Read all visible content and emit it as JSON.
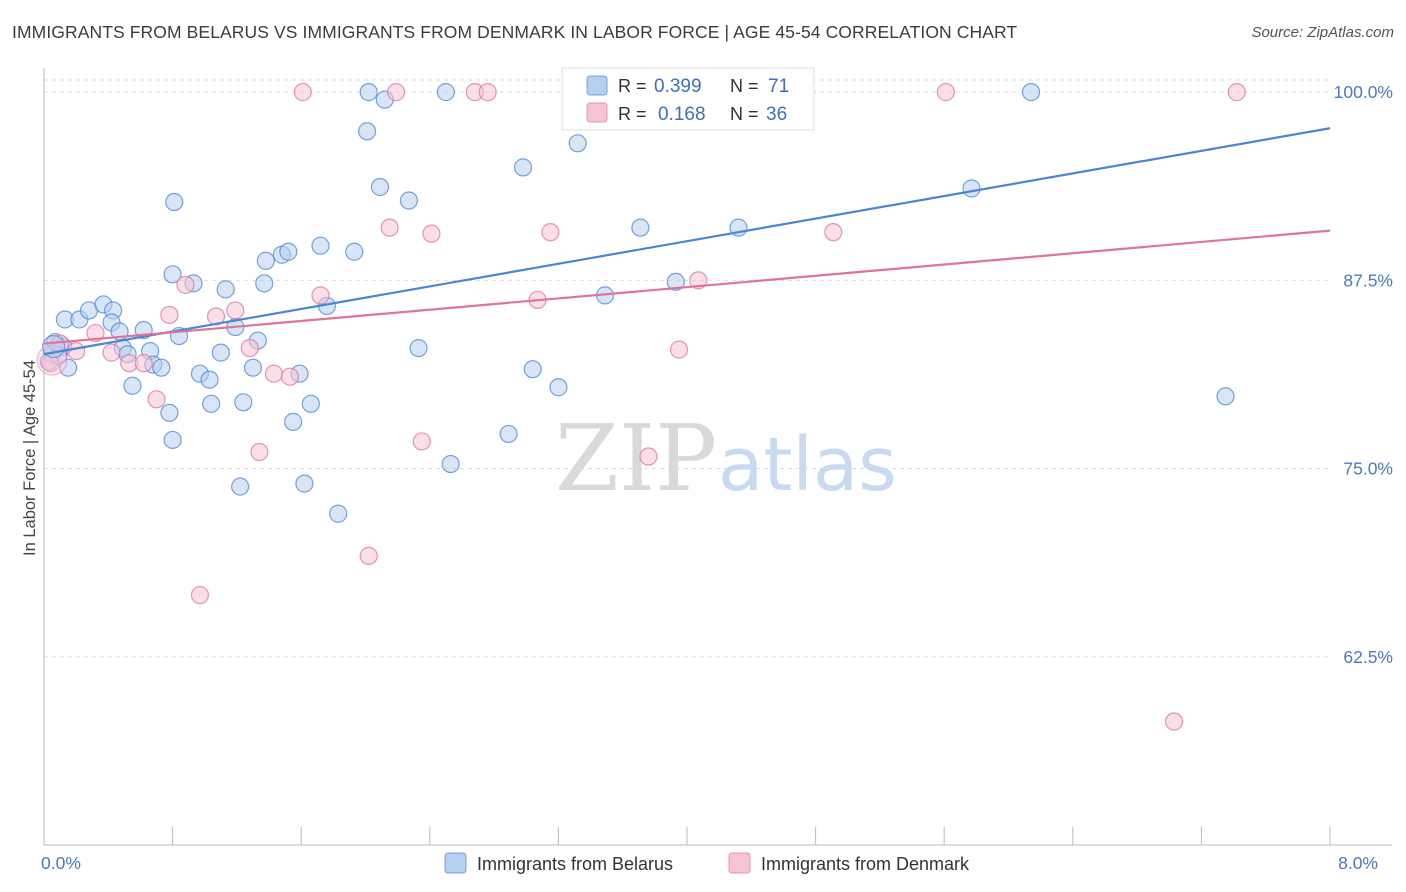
{
  "title": "IMMIGRANTS FROM BELARUS VS IMMIGRANTS FROM DENMARK IN LABOR FORCE | AGE 45-54 CORRELATION CHART",
  "source": "Source: ZipAtlas.com",
  "watermark": {
    "zip": "ZIP",
    "atlas": "atlas"
  },
  "legend_top": {
    "r_label": "R =",
    "n_label": "N =",
    "rows": [
      {
        "r": "0.399",
        "n": "71",
        "color": "#a9c6ec"
      },
      {
        "r": "0.168",
        "n": "36",
        "color": "#f4b7c9"
      }
    ]
  },
  "chart_data": {
    "type": "scatter",
    "ylabel": "In Labor Force | Age 45-54",
    "xlim": [
      0,
      8
    ],
    "ylim": [
      50,
      102
    ],
    "x_tick_labels": [
      {
        "x": 0,
        "label": "0.0%"
      },
      {
        "x": 8,
        "label": "8.0%"
      }
    ],
    "y_ticks": [
      {
        "y": 62.5,
        "label": "62.5%"
      },
      {
        "y": 75.0,
        "label": "75.0%"
      },
      {
        "y": 87.5,
        "label": "87.5%"
      },
      {
        "y": 100.0,
        "label": "100.0%"
      }
    ],
    "grid": true,
    "series": [
      {
        "name": "Immigrants from Belarus",
        "color": "#4a86d4",
        "fill": "#b8d0f0",
        "trend": {
          "x0": 0,
          "y0": 82.6,
          "x1": 8,
          "y1": 97.6
        },
        "points": [
          [
            0.05,
            82.6
          ],
          [
            0.07,
            83.4
          ],
          [
            0.12,
            83.1
          ],
          [
            0.15,
            81.7
          ],
          [
            0.13,
            84.9
          ],
          [
            0.22,
            84.9
          ],
          [
            0.28,
            85.5
          ],
          [
            0.37,
            85.9
          ],
          [
            0.43,
            85.5
          ],
          [
            0.42,
            84.7
          ],
          [
            0.47,
            84.1
          ],
          [
            0.49,
            83.0
          ],
          [
            0.52,
            82.6
          ],
          [
            0.55,
            80.5
          ],
          [
            0.62,
            84.2
          ],
          [
            0.66,
            82.8
          ],
          [
            0.68,
            81.9
          ],
          [
            0.73,
            81.7
          ],
          [
            0.78,
            78.7
          ],
          [
            0.8,
            76.9
          ],
          [
            0.84,
            83.8
          ],
          [
            0.81,
            92.7
          ],
          [
            0.8,
            87.9
          ],
          [
            0.93,
            87.3
          ],
          [
            0.97,
            81.3
          ],
          [
            1.03,
            80.9
          ],
          [
            1.04,
            79.3
          ],
          [
            1.1,
            82.7
          ],
          [
            1.13,
            86.9
          ],
          [
            1.19,
            84.4
          ],
          [
            1.22,
            73.8
          ],
          [
            1.24,
            79.4
          ],
          [
            1.3,
            81.7
          ],
          [
            1.33,
            83.5
          ],
          [
            1.37,
            87.3
          ],
          [
            1.38,
            88.8
          ],
          [
            1.48,
            89.2
          ],
          [
            1.52,
            89.4
          ],
          [
            1.55,
            78.1
          ],
          [
            1.59,
            81.3
          ],
          [
            1.62,
            74.0
          ],
          [
            1.66,
            79.3
          ],
          [
            1.72,
            89.8
          ],
          [
            1.76,
            85.8
          ],
          [
            1.83,
            72.0
          ],
          [
            1.93,
            89.4
          ],
          [
            2.01,
            97.4
          ],
          [
            2.02,
            100.0
          ],
          [
            2.09,
            93.7
          ],
          [
            2.12,
            99.5
          ],
          [
            2.27,
            92.8
          ],
          [
            2.33,
            83.0
          ],
          [
            2.5,
            100.0
          ],
          [
            2.53,
            75.3
          ],
          [
            2.89,
            77.3
          ],
          [
            2.98,
            95.0
          ],
          [
            3.04,
            81.6
          ],
          [
            3.2,
            80.4
          ],
          [
            3.32,
            96.6
          ],
          [
            3.35,
            100.0
          ],
          [
            3.49,
            86.5
          ],
          [
            3.72,
            100.0
          ],
          [
            3.71,
            91.0
          ],
          [
            3.93,
            87.4
          ],
          [
            4.14,
            100.0
          ],
          [
            4.32,
            91.0
          ],
          [
            5.77,
            93.6
          ],
          [
            6.14,
            100.0
          ],
          [
            7.35,
            79.8
          ],
          [
            0.03,
            82.1
          ],
          [
            0.09,
            82.5
          ]
        ]
      },
      {
        "name": "Immigrants from Denmark",
        "color": "#e0729c",
        "fill": "#f7c4d3",
        "trend": {
          "x0": 0,
          "y0": 83.3,
          "x1": 8,
          "y1": 90.8
        },
        "points": [
          [
            0.04,
            82.0
          ],
          [
            0.1,
            83.3
          ],
          [
            0.2,
            82.8
          ],
          [
            0.32,
            84.0
          ],
          [
            0.42,
            82.7
          ],
          [
            0.53,
            82.0
          ],
          [
            0.62,
            82.0
          ],
          [
            0.7,
            79.6
          ],
          [
            0.78,
            85.2
          ],
          [
            0.88,
            87.2
          ],
          [
            0.97,
            66.6
          ],
          [
            1.07,
            85.1
          ],
          [
            1.19,
            85.5
          ],
          [
            1.28,
            83.0
          ],
          [
            1.34,
            76.1
          ],
          [
            1.43,
            81.3
          ],
          [
            1.53,
            81.1
          ],
          [
            1.61,
            100.0
          ],
          [
            1.72,
            86.5
          ],
          [
            2.02,
            69.2
          ],
          [
            2.15,
            91.0
          ],
          [
            2.19,
            100.0
          ],
          [
            2.35,
            76.8
          ],
          [
            2.41,
            90.6
          ],
          [
            2.68,
            100.0
          ],
          [
            2.76,
            100.0
          ],
          [
            3.07,
            86.2
          ],
          [
            3.15,
            90.7
          ],
          [
            3.76,
            75.8
          ],
          [
            3.84,
            100.0
          ],
          [
            3.95,
            82.9
          ],
          [
            4.07,
            87.5
          ],
          [
            4.91,
            90.7
          ],
          [
            5.61,
            100.0
          ],
          [
            7.03,
            58.2
          ],
          [
            7.42,
            100.0
          ]
        ]
      }
    ]
  }
}
